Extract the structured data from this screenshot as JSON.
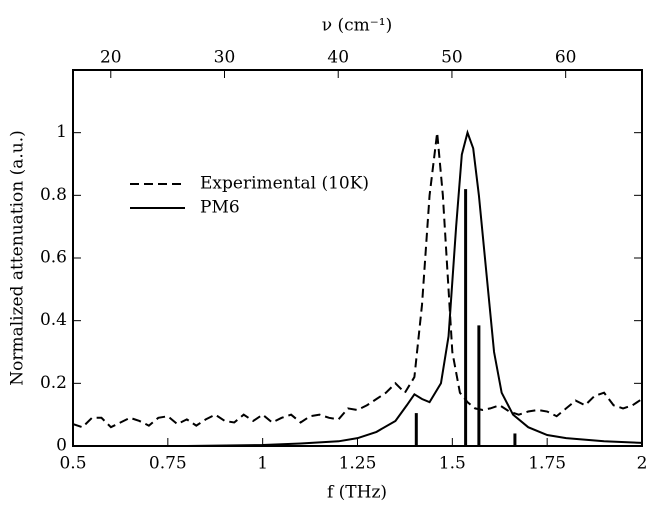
{
  "chart_data": {
    "type": "line",
    "xlabel": "f (THz)",
    "ylabel": "Normalized attenuation (a.u.)",
    "x2label": "ν (cm⁻¹)",
    "xlim": [
      0.5,
      2
    ],
    "xticks": [
      0.5,
      0.75,
      1,
      1.25,
      1.5,
      1.75,
      2
    ],
    "ylim": [
      0,
      1.2
    ],
    "yticks": [
      0,
      0.2,
      0.4,
      0.6,
      0.8,
      1
    ],
    "x2lim": [
      16.678,
      66.713
    ],
    "x2ticks": [
      20,
      30,
      40,
      50,
      60
    ],
    "legend": "upper left",
    "series": [
      {
        "name": "Experimental (10K)",
        "color": "#000000",
        "style": "dashed",
        "x": [
          0.5,
          0.525,
          0.55,
          0.575,
          0.6,
          0.625,
          0.65,
          0.675,
          0.7,
          0.725,
          0.75,
          0.775,
          0.8,
          0.825,
          0.85,
          0.875,
          0.9,
          0.925,
          0.95,
          0.975,
          1.0,
          1.025,
          1.05,
          1.075,
          1.1,
          1.125,
          1.15,
          1.175,
          1.2,
          1.225,
          1.25,
          1.275,
          1.3,
          1.325,
          1.35,
          1.375,
          1.4,
          1.42,
          1.44,
          1.46,
          1.475,
          1.49,
          1.5,
          1.52,
          1.54,
          1.56,
          1.58,
          1.6,
          1.625,
          1.65,
          1.675,
          1.7,
          1.725,
          1.75,
          1.775,
          1.8,
          1.825,
          1.85,
          1.875,
          1.9,
          1.925,
          1.95,
          1.975,
          2.0
        ],
        "values": [
          0.07,
          0.06,
          0.09,
          0.09,
          0.06,
          0.075,
          0.09,
          0.08,
          0.065,
          0.09,
          0.095,
          0.07,
          0.085,
          0.065,
          0.085,
          0.1,
          0.08,
          0.075,
          0.1,
          0.08,
          0.1,
          0.075,
          0.09,
          0.1,
          0.075,
          0.095,
          0.1,
          0.09,
          0.085,
          0.12,
          0.115,
          0.13,
          0.15,
          0.17,
          0.2,
          0.17,
          0.22,
          0.45,
          0.8,
          1.0,
          0.8,
          0.5,
          0.3,
          0.17,
          0.14,
          0.12,
          0.115,
          0.12,
          0.13,
          0.11,
          0.1,
          0.11,
          0.115,
          0.11,
          0.095,
          0.12,
          0.145,
          0.13,
          0.16,
          0.17,
          0.13,
          0.12,
          0.13,
          0.15
        ]
      },
      {
        "name": "PM6",
        "color": "#000000",
        "style": "solid",
        "x": [
          0.5,
          0.8,
          1.0,
          1.1,
          1.2,
          1.25,
          1.3,
          1.35,
          1.38,
          1.4,
          1.42,
          1.44,
          1.47,
          1.49,
          1.51,
          1.525,
          1.54,
          1.555,
          1.57,
          1.59,
          1.61,
          1.63,
          1.66,
          1.7,
          1.75,
          1.8,
          1.9,
          2.0
        ],
        "values": [
          0.0,
          0.0,
          0.003,
          0.008,
          0.015,
          0.025,
          0.045,
          0.08,
          0.13,
          0.165,
          0.15,
          0.14,
          0.2,
          0.35,
          0.7,
          0.93,
          1.0,
          0.95,
          0.8,
          0.55,
          0.3,
          0.17,
          0.1,
          0.06,
          0.035,
          0.025,
          0.015,
          0.01
        ]
      }
    ],
    "sticks": {
      "color": "#000000",
      "x": [
        1.405,
        1.535,
        1.57,
        1.665
      ],
      "values": [
        0.105,
        0.82,
        0.385,
        0.04
      ]
    }
  }
}
